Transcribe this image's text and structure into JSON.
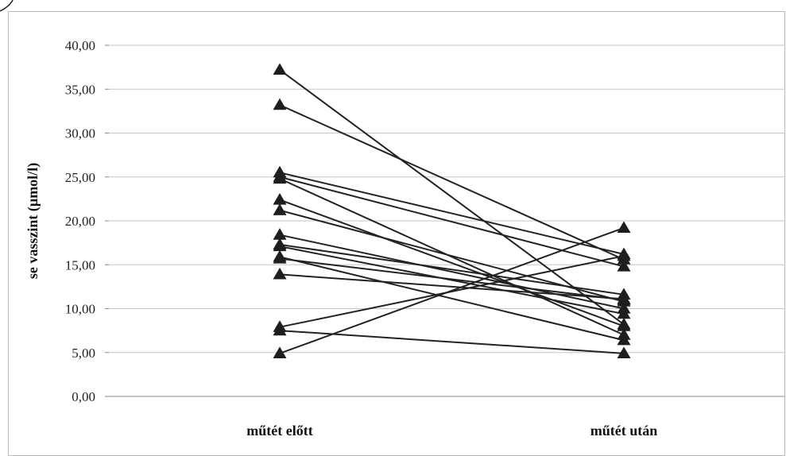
{
  "chart_data": {
    "type": "line",
    "categories": [
      "műtét előtt",
      "műtét után"
    ],
    "ylabel": "se vasszint (µmol/l)",
    "xlabel": "",
    "title": "",
    "ylim": [
      0,
      40
    ],
    "y_ticks": [
      "0,00",
      "5,00",
      "10,00",
      "15,00",
      "20,00",
      "25,00",
      "30,00",
      "35,00",
      "40,00"
    ],
    "grid": "horizontal",
    "marker": "triangle",
    "line_color": "#222222",
    "series": [
      {
        "values": [
          37.2,
          8.2
        ]
      },
      {
        "values": [
          33.2,
          15.6
        ]
      },
      {
        "values": [
          25.5,
          16.2
        ]
      },
      {
        "values": [
          25.0,
          14.8
        ]
      },
      {
        "values": [
          24.8,
          7.0
        ]
      },
      {
        "values": [
          22.4,
          8.0
        ]
      },
      {
        "values": [
          21.2,
          10.8
        ]
      },
      {
        "values": [
          18.4,
          10.0
        ]
      },
      {
        "values": [
          17.3,
          11.6
        ]
      },
      {
        "values": [
          17.1,
          9.4
        ]
      },
      {
        "values": [
          15.9,
          6.4
        ]
      },
      {
        "values": [
          15.7,
          11.0
        ]
      },
      {
        "values": [
          13.9,
          11.1
        ]
      },
      {
        "values": [
          7.9,
          16.0
        ]
      },
      {
        "values": [
          7.5,
          4.9
        ]
      },
      {
        "values": [
          4.9,
          19.2
        ]
      }
    ]
  }
}
